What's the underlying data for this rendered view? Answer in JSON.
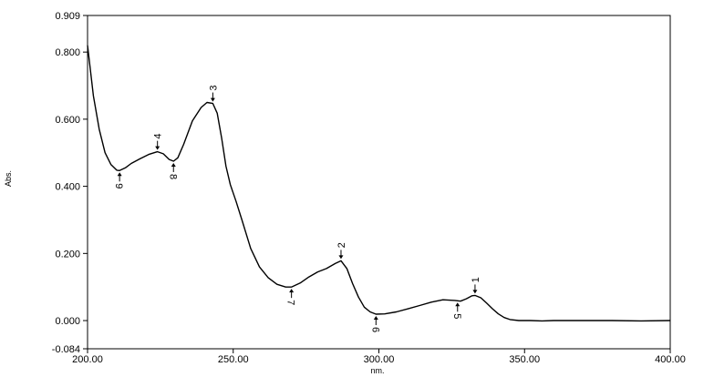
{
  "chart_data": {
    "type": "line",
    "xlabel": "nm.",
    "ylabel": "Abs.",
    "xlim": [
      200.0,
      400.0
    ],
    "ylim": [
      -0.084,
      0.909
    ],
    "x_ticks": [
      "200.00",
      "250.00",
      "300.00",
      "350.00",
      "400.00"
    ],
    "x_tick_values": [
      200,
      250,
      300,
      350,
      400
    ],
    "y_ticks": [
      "0.909",
      "0.800",
      "0.600",
      "0.400",
      "0.200",
      "0.000",
      "-0.084"
    ],
    "y_tick_values": [
      0.909,
      0.8,
      0.6,
      0.4,
      0.2,
      0.0,
      -0.084
    ],
    "grid": false,
    "series": [
      {
        "x": [
          200,
          202,
          204,
          206,
          208,
          210,
          211,
          213,
          215,
          218,
          221,
          224,
          226,
          228,
          229.5,
          231,
          233,
          236,
          239,
          241,
          243,
          244.5,
          246,
          247.5,
          249,
          251,
          253,
          256,
          259,
          262,
          265,
          268,
          270,
          273,
          276,
          279,
          282,
          285,
          287,
          289,
          291,
          293,
          295,
          297,
          299,
          302,
          306,
          310,
          314,
          318,
          322,
          326,
          328,
          330,
          332,
          333,
          335,
          337,
          339,
          341,
          343,
          345,
          348,
          352,
          356,
          360,
          370,
          380,
          390,
          400
        ],
        "y": [
          0.82,
          0.67,
          0.57,
          0.5,
          0.465,
          0.448,
          0.447,
          0.455,
          0.468,
          0.482,
          0.495,
          0.503,
          0.497,
          0.48,
          0.475,
          0.485,
          0.525,
          0.595,
          0.635,
          0.65,
          0.647,
          0.618,
          0.545,
          0.46,
          0.405,
          0.355,
          0.3,
          0.215,
          0.16,
          0.128,
          0.108,
          0.1,
          0.1,
          0.112,
          0.13,
          0.145,
          0.155,
          0.17,
          0.178,
          0.155,
          0.11,
          0.07,
          0.04,
          0.026,
          0.019,
          0.02,
          0.026,
          0.035,
          0.045,
          0.055,
          0.062,
          0.06,
          0.058,
          0.065,
          0.074,
          0.075,
          0.068,
          0.052,
          0.035,
          0.02,
          0.009,
          0.003,
          0.0,
          0.0,
          -0.001,
          0.0,
          0.0,
          0.0,
          -0.001,
          0.0
        ]
      }
    ],
    "annotations": [
      {
        "label": "1",
        "x": 333.0,
        "y": 0.075,
        "side": "above"
      },
      {
        "label": "2",
        "x": 287.0,
        "y": 0.178,
        "side": "above"
      },
      {
        "label": "3",
        "x": 243.0,
        "y": 0.647,
        "side": "above"
      },
      {
        "label": "4",
        "x": 224.0,
        "y": 0.503,
        "side": "above"
      },
      {
        "label": "5",
        "x": 327.0,
        "y": 0.059,
        "side": "below"
      },
      {
        "label": "6",
        "x": 299.0,
        "y": 0.019,
        "side": "below"
      },
      {
        "label": "7",
        "x": 270.0,
        "y": 0.1,
        "side": "below"
      },
      {
        "label": "8",
        "x": 229.5,
        "y": 0.475,
        "side": "below"
      },
      {
        "label": "9",
        "x": 211.0,
        "y": 0.447,
        "side": "below"
      }
    ]
  }
}
